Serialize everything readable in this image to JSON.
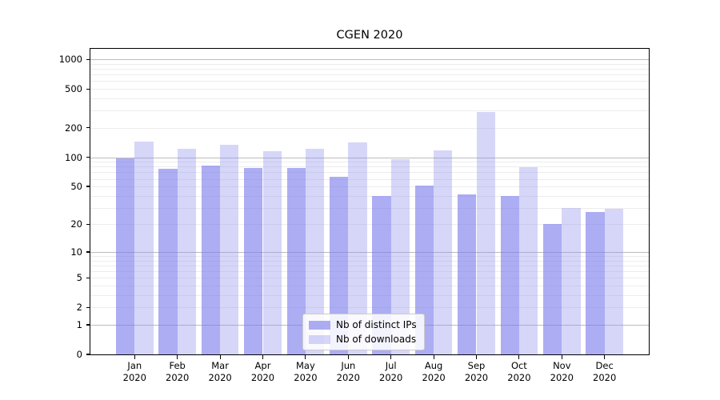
{
  "chart_data": {
    "type": "bar",
    "title": "CGEN 2020",
    "categories": [
      "Jan",
      "Feb",
      "Mar",
      "Apr",
      "May",
      "Jun",
      "Jul",
      "Aug",
      "Sep",
      "Oct",
      "Nov",
      "Dec"
    ],
    "year_label": "2020",
    "series": [
      {
        "name": "Nb of distinct IPs",
        "color": "rgba(122,122,235,0.62)",
        "color_hex_on_white": "#acacf1",
        "values": [
          97,
          76,
          82,
          78,
          77,
          63,
          40,
          51,
          41,
          40,
          20,
          27
        ]
      },
      {
        "name": "Nb of downloads",
        "color": "rgba(148,148,240,0.38)",
        "color_hex_on_white": "#d8d8f8",
        "values": [
          145,
          123,
          134,
          115,
          122,
          141,
          95,
          118,
          290,
          79,
          30,
          29
        ]
      }
    ],
    "xlabel": "",
    "ylabel": "",
    "yscale": "symlog-log1p",
    "yticks": [
      0,
      1,
      2,
      5,
      10,
      20,
      50,
      100,
      200,
      500,
      1000
    ],
    "ylim": [
      0,
      1280
    ],
    "grid": "major lines at decades, light minor lines at 2-9 per decade",
    "legend_position": "lower center inside plot"
  },
  "colors": {
    "background": "#ffffff",
    "grid_major": "#bcbcbc",
    "grid_minor": "#ececec",
    "spine": "#000000",
    "text": "#000000",
    "legend_border": "#cccccc"
  }
}
